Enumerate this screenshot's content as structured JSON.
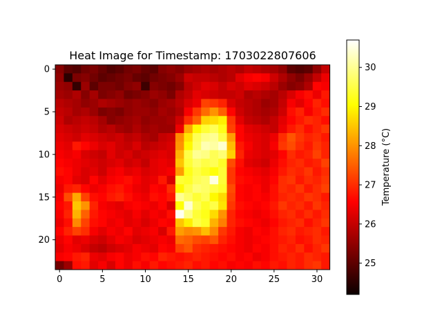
{
  "chart_data": {
    "type": "heatmap",
    "title": "Heat Image for Timestamp: 1703022807606",
    "xlabel": "",
    "ylabel": "",
    "colorbar_label": "Temperature (°C)",
    "colormap": "hot",
    "rows": 24,
    "cols": 32,
    "x_ticks": [
      0,
      5,
      10,
      15,
      20,
      25,
      30
    ],
    "y_ticks": [
      0,
      5,
      10,
      15,
      20
    ],
    "colorbar_ticks": [
      25,
      26,
      27,
      28,
      29,
      30
    ],
    "vmin": 24.2,
    "vmax": 30.7,
    "values": [
      [
        25.4,
        25.0,
        24.9,
        25.2,
        25.3,
        25.1,
        24.9,
        25.0,
        25.2,
        25.3,
        25.1,
        25.0,
        25.4,
        25.5,
        25.4,
        25.6,
        25.7,
        25.8,
        25.7,
        25.8,
        25.9,
        25.8,
        26.0,
        25.9,
        25.8,
        25.7,
        25.5,
        25.0,
        24.9,
        25.0,
        25.5,
        26.0
      ],
      [
        25.5,
        24.5,
        25.3,
        25.4,
        25.2,
        25.0,
        25.1,
        25.2,
        25.3,
        25.1,
        25.0,
        25.2,
        25.3,
        25.4,
        25.6,
        26.1,
        26.0,
        26.0,
        25.9,
        25.8,
        25.9,
        26.3,
        26.5,
        26.6,
        26.5,
        26.1,
        25.8,
        25.5,
        25.3,
        25.6,
        26.0,
        26.4
      ],
      [
        25.6,
        25.5,
        24.6,
        25.6,
        25.0,
        25.3,
        25.3,
        25.2,
        25.4,
        25.5,
        24.7,
        25.4,
        25.3,
        25.2,
        25.4,
        25.9,
        26.1,
        26.3,
        26.2,
        26.0,
        26.2,
        26.1,
        26.3,
        26.2,
        26.1,
        25.9,
        25.6,
        25.4,
        25.5,
        25.8,
        26.6,
        26.5
      ],
      [
        25.7,
        25.6,
        25.8,
        25.4,
        25.7,
        25.3,
        25.4,
        25.5,
        25.2,
        25.3,
        25.4,
        25.6,
        25.5,
        25.3,
        25.8,
        26.0,
        26.3,
        26.2,
        26.1,
        26.0,
        26.0,
        26.1,
        25.8,
        25.9,
        25.8,
        25.7,
        25.9,
        26.2,
        26.5,
        26.7,
        26.4,
        26.8
      ],
      [
        25.9,
        25.8,
        25.7,
        25.5,
        25.6,
        25.8,
        25.7,
        25.6,
        25.5,
        25.6,
        25.5,
        25.4,
        25.6,
        25.7,
        25.9,
        26.2,
        26.4,
        27.2,
        27.1,
        26.9,
        26.2,
        26.0,
        25.9,
        25.8,
        25.6,
        25.7,
        26.0,
        26.5,
        26.3,
        26.6,
        26.9,
        26.7
      ],
      [
        26.0,
        25.9,
        25.7,
        25.8,
        25.6,
        25.3,
        25.4,
        25.3,
        25.5,
        25.6,
        25.6,
        25.5,
        25.7,
        25.6,
        25.8,
        26.5,
        27.1,
        27.6,
        28.0,
        27.5,
        26.6,
        26.1,
        25.9,
        25.8,
        25.7,
        25.8,
        26.1,
        26.7,
        26.9,
        26.5,
        26.8,
        27.0
      ],
      [
        26.1,
        25.8,
        25.9,
        26.0,
        25.9,
        25.7,
        25.4,
        25.5,
        25.6,
        25.7,
        25.5,
        25.6,
        25.6,
        25.7,
        26.1,
        27.0,
        27.5,
        28.6,
        28.7,
        28.9,
        27.1,
        26.3,
        26.0,
        25.9,
        25.8,
        26.0,
        26.3,
        26.6,
        26.8,
        27.0,
        26.9,
        26.7
      ],
      [
        26.2,
        26.1,
        26.0,
        26.1,
        26.0,
        25.8,
        25.9,
        25.7,
        25.6,
        25.8,
        25.6,
        25.7,
        25.6,
        25.6,
        26.4,
        28.2,
        29.0,
        29.4,
        29.6,
        29.2,
        27.2,
        26.6,
        26.3,
        26.2,
        26.1,
        26.0,
        26.4,
        26.8,
        27.0,
        26.7,
        26.9,
        27.1
      ],
      [
        26.3,
        26.2,
        26.1,
        26.3,
        26.2,
        26.1,
        26.0,
        26.1,
        25.9,
        26.0,
        25.8,
        25.7,
        26.0,
        26.1,
        27.9,
        28.8,
        29.6,
        29.9,
        30.0,
        29.5,
        28.1,
        26.6,
        26.4,
        26.3,
        26.2,
        26.4,
        27.0,
        27.4,
        27.1,
        26.9,
        27.0,
        26.8
      ],
      [
        26.4,
        26.3,
        26.8,
        26.6,
        26.4,
        26.2,
        26.3,
        26.1,
        26.0,
        26.2,
        25.9,
        26.0,
        26.1,
        26.2,
        28.0,
        29.0,
        29.7,
        30.2,
        30.1,
        30.4,
        28.4,
        26.8,
        26.5,
        26.3,
        26.2,
        26.5,
        27.1,
        27.3,
        27.0,
        26.8,
        27.1,
        26.9
      ],
      [
        26.5,
        26.4,
        26.5,
        26.2,
        26.1,
        26.0,
        26.3,
        26.1,
        26.2,
        26.0,
        26.1,
        26.2,
        26.3,
        26.2,
        28.3,
        29.5,
        30.0,
        29.9,
        29.6,
        29.8,
        28.6,
        26.9,
        26.4,
        26.3,
        26.2,
        26.3,
        26.6,
        27.0,
        26.8,
        26.9,
        27.2,
        26.9
      ],
      [
        26.6,
        26.5,
        26.4,
        26.3,
        26.2,
        26.1,
        26.2,
        26.3,
        26.1,
        26.2,
        26.0,
        26.3,
        26.4,
        26.3,
        28.5,
        29.4,
        29.7,
        29.5,
        29.6,
        29.3,
        27.3,
        26.7,
        26.3,
        26.2,
        26.1,
        26.4,
        26.7,
        26.9,
        27.0,
        26.8,
        26.9,
        27.2
      ],
      [
        26.7,
        26.6,
        26.4,
        26.2,
        26.3,
        26.1,
        26.4,
        26.5,
        26.3,
        26.4,
        26.2,
        26.3,
        26.4,
        26.5,
        28.1,
        29.2,
        29.5,
        29.3,
        29.1,
        29.4,
        27.1,
        26.6,
        26.5,
        26.4,
        26.3,
        26.5,
        26.8,
        27.0,
        26.9,
        27.1,
        26.8,
        27.0
      ],
      [
        26.5,
        26.6,
        26.3,
        26.2,
        26.6,
        26.3,
        26.5,
        26.6,
        26.7,
        26.5,
        26.3,
        26.4,
        26.8,
        26.2,
        29.4,
        29.3,
        29.6,
        29.7,
        30.5,
        29.4,
        27.1,
        26.7,
        26.6,
        26.5,
        26.4,
        26.6,
        27.0,
        27.1,
        26.8,
        27.0,
        26.9,
        27.1
      ],
      [
        26.4,
        26.8,
        26.9,
        26.6,
        26.4,
        26.5,
        26.7,
        26.8,
        26.6,
        26.4,
        26.3,
        26.6,
        26.5,
        27.0,
        29.0,
        29.5,
        29.8,
        29.7,
        29.5,
        29.3,
        27.3,
        26.6,
        26.5,
        26.6,
        26.4,
        26.7,
        27.0,
        26.9,
        27.1,
        26.8,
        27.0,
        27.2
      ],
      [
        26.5,
        27.3,
        28.2,
        27.2,
        26.7,
        26.6,
        26.8,
        26.9,
        26.7,
        26.5,
        26.4,
        26.7,
        26.6,
        26.8,
        30.0,
        29.7,
        29.4,
        29.6,
        29.0,
        28.7,
        27.2,
        26.6,
        26.5,
        26.6,
        26.5,
        26.7,
        26.9,
        27.0,
        26.9,
        27.1,
        27.0,
        26.8
      ],
      [
        26.6,
        26.8,
        28.5,
        28.0,
        26.9,
        26.5,
        26.4,
        26.3,
        26.5,
        26.6,
        26.5,
        26.4,
        26.6,
        26.2,
        29.1,
        30.4,
        29.6,
        29.3,
        29.5,
        28.8,
        27.1,
        26.7,
        26.6,
        26.5,
        26.6,
        26.8,
        27.1,
        26.9,
        27.0,
        26.8,
        27.1,
        26.9
      ],
      [
        26.5,
        26.9,
        28.3,
        27.5,
        26.8,
        26.6,
        26.5,
        26.4,
        26.3,
        26.5,
        26.3,
        26.5,
        26.4,
        26.7,
        30.6,
        29.9,
        29.4,
        29.2,
        28.7,
        28.0,
        26.9,
        26.6,
        26.5,
        26.4,
        26.5,
        26.7,
        26.9,
        27.0,
        26.8,
        27.0,
        26.8,
        27.0
      ],
      [
        26.4,
        26.7,
        27.9,
        27.2,
        26.7,
        26.6,
        26.4,
        26.5,
        26.3,
        26.4,
        26.2,
        26.4,
        26.6,
        26.5,
        28.5,
        28.9,
        29.5,
        29.3,
        28.3,
        27.8,
        26.9,
        26.7,
        26.6,
        26.5,
        26.4,
        26.6,
        26.8,
        26.9,
        27.0,
        26.7,
        26.9,
        27.1
      ],
      [
        26.6,
        26.9,
        27.2,
        27.0,
        26.5,
        26.3,
        26.5,
        26.4,
        26.6,
        26.3,
        26.4,
        26.5,
        26.2,
        26.8,
        28.1,
        27.9,
        28.0,
        28.4,
        27.9,
        27.1,
        26.8,
        26.5,
        26.4,
        26.6,
        26.5,
        26.7,
        26.9,
        27.0,
        26.8,
        26.9,
        27.0,
        26.8
      ],
      [
        26.4,
        26.6,
        26.3,
        26.4,
        26.2,
        26.1,
        26.3,
        26.5,
        26.4,
        26.2,
        26.3,
        26.4,
        26.5,
        26.4,
        27.6,
        27.5,
        27.3,
        27.2,
        27.4,
        26.9,
        26.7,
        26.5,
        26.4,
        26.5,
        26.6,
        26.7,
        26.8,
        26.9,
        26.7,
        26.8,
        27.0,
        26.9
      ],
      [
        26.3,
        26.5,
        26.4,
        26.2,
        26.0,
        25.9,
        26.1,
        26.2,
        26.3,
        26.5,
        26.4,
        26.3,
        26.6,
        26.5,
        27.2,
        27.4,
        27.0,
        26.9,
        26.8,
        26.7,
        26.6,
        26.5,
        26.4,
        26.6,
        26.5,
        26.7,
        26.9,
        26.8,
        27.0,
        26.7,
        26.9,
        27.1
      ],
      [
        26.5,
        26.6,
        26.8,
        26.9,
        26.4,
        26.3,
        26.5,
        26.6,
        26.4,
        26.5,
        26.7,
        26.6,
        26.9,
        26.8,
        26.7,
        26.8,
        26.9,
        26.8,
        26.7,
        26.6,
        26.7,
        26.5,
        26.6,
        26.4,
        26.5,
        26.7,
        26.8,
        26.9,
        26.8,
        27.0,
        26.9,
        26.8
      ],
      [
        25.2,
        25.6,
        26.7,
        26.8,
        26.3,
        26.5,
        26.2,
        26.6,
        26.4,
        26.7,
        26.5,
        26.8,
        26.6,
        26.7,
        26.8,
        26.9,
        26.7,
        26.8,
        26.6,
        26.7,
        26.5,
        26.6,
        26.5,
        26.7,
        26.6,
        26.8,
        26.7,
        26.9,
        26.8,
        27.0,
        27.1,
        26.8
      ]
    ]
  }
}
